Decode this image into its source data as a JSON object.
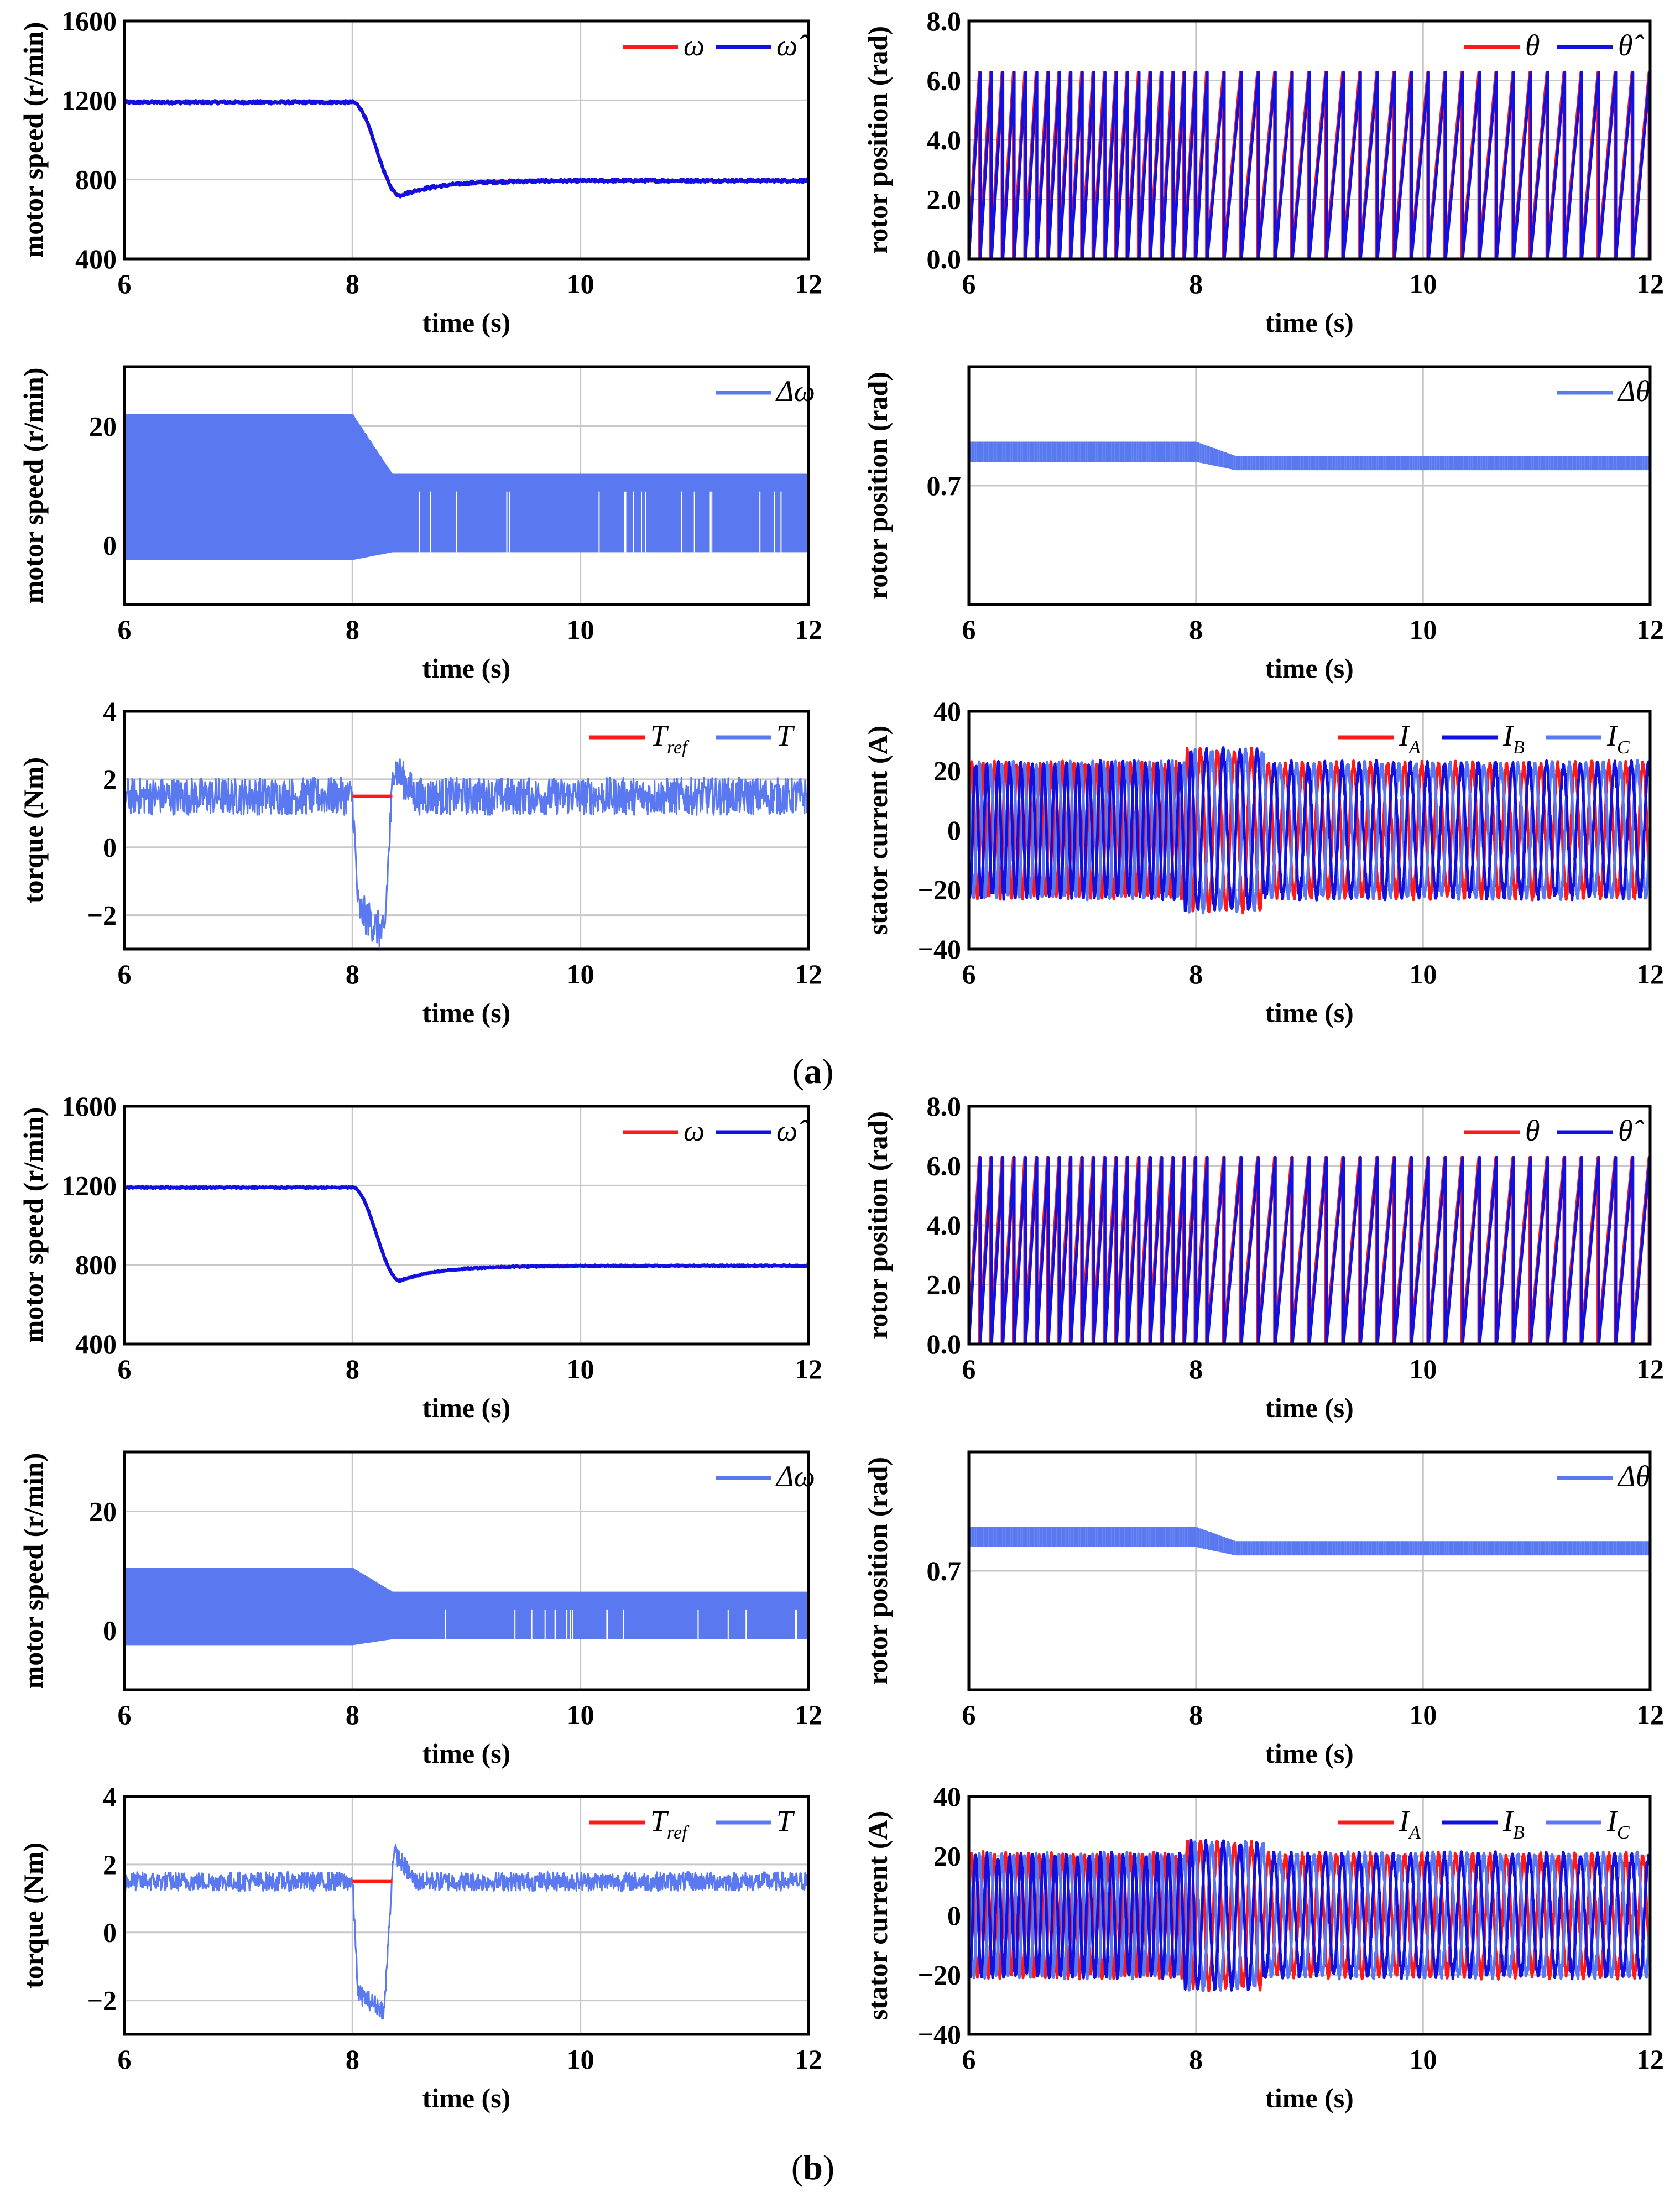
{
  "colors": {
    "red": "#ff1a1a",
    "blue": "#1010e0",
    "lightblue": "#5a78f0"
  },
  "captions": {
    "a_paren_open": "(",
    "a_letter": "a",
    "a_paren_close": ")",
    "b_paren_open": "(",
    "b_letter": "b",
    "b_paren_close": ")"
  },
  "chart_data": [
    {
      "id": "a-speed",
      "type": "line",
      "xlabel": "time (s)",
      "ylabel": "motor speed (r/min)",
      "xlim": [
        6,
        12
      ],
      "ylim": [
        400,
        1600
      ],
      "xticks": [
        "6",
        "8",
        "10",
        "12"
      ],
      "yticks": [
        "400",
        "800",
        "1200",
        "1600"
      ],
      "legend": [
        {
          "label": "ω",
          "color": "red"
        },
        {
          "label": "ω̂",
          "color": "blue"
        }
      ],
      "series": [
        {
          "name": "ω̂",
          "shape": "speed_step",
          "initial": 1190,
          "final": 795,
          "dip": 720,
          "t_step": 8.0,
          "noise": 8
        }
      ]
    },
    {
      "id": "a-pos",
      "type": "line",
      "xlabel": "time (s)",
      "ylabel": "rotor position (rad)",
      "xlim": [
        6,
        12
      ],
      "ylim": [
        0,
        8
      ],
      "xticks": [
        "6",
        "8",
        "10",
        "12"
      ],
      "yticks": [
        "0.0",
        "2.0",
        "4.0",
        "6.0",
        "8.0"
      ],
      "legend": [
        {
          "label": "θ",
          "color": "red"
        },
        {
          "label": "θ̂",
          "color": "blue"
        }
      ],
      "series": [
        {
          "name": "θ",
          "shape": "sawtooth",
          "max": 6.28,
          "freq_before": 10.0,
          "freq_after": 6.67,
          "t_step": 8.0
        }
      ]
    },
    {
      "id": "a-dspeed",
      "type": "area",
      "xlabel": "time (s)",
      "ylabel": "motor speed (r/min)",
      "xlim": [
        6,
        12
      ],
      "ylim": [
        -10,
        30
      ],
      "xticks": [
        "6",
        "8",
        "10",
        "12"
      ],
      "yticks": [
        "0",
        "20"
      ],
      "legend": [
        {
          "label": "Δω",
          "color": "lightblue"
        }
      ],
      "series": [
        {
          "name": "Δω",
          "shape": "band",
          "upper_before": 22,
          "lower_before": -2.5,
          "upper_after": 12,
          "lower_after": -1.2,
          "t_step": 8.0
        }
      ]
    },
    {
      "id": "a-dpos",
      "type": "area",
      "xlabel": "time (s)",
      "ylabel": "rotor position (rad)",
      "xlim": [
        6,
        12
      ],
      "ylim": [
        0.6,
        0.8
      ],
      "xticks": [
        "6",
        "8",
        "10",
        "12"
      ],
      "yticks": [
        "0.7"
      ],
      "legend": [
        {
          "label": "Δθ",
          "color": "lightblue"
        }
      ],
      "series": [
        {
          "name": "Δθ",
          "shape": "thin_band",
          "upper_before": 0.737,
          "lower_before": 0.72,
          "upper_after": 0.725,
          "lower_after": 0.713,
          "t_step": 8.0
        }
      ]
    },
    {
      "id": "a-torque",
      "type": "line",
      "xlabel": "time (s)",
      "ylabel": "torque (Nm)",
      "xlim": [
        6,
        12
      ],
      "ylim": [
        -3,
        4
      ],
      "xticks": [
        "6",
        "8",
        "10",
        "12"
      ],
      "yticks": [
        "−2",
        "0",
        "2",
        "4"
      ],
      "legend": [
        {
          "label": "T",
          "sub": "ref",
          "color": "red"
        },
        {
          "label": "T",
          "color": "lightblue"
        }
      ],
      "series": [
        {
          "name": "T",
          "shape": "torque",
          "mean": 1.5,
          "noise": 0.55,
          "min": -2.6,
          "t_step": 8.0
        },
        {
          "name": "Tref",
          "shape": "const",
          "value": 1.5,
          "from": 8.0,
          "to": 8.35
        }
      ]
    },
    {
      "id": "a-current",
      "type": "line",
      "xlabel": "time (s)",
      "ylabel": "stator current (A)",
      "xlim": [
        6,
        12
      ],
      "ylim": [
        -40,
        40
      ],
      "xticks": [
        "6",
        "8",
        "10",
        "12"
      ],
      "yticks": [
        "−40",
        "−20",
        "0",
        "20",
        "40"
      ],
      "legend": [
        {
          "label": "I",
          "sub": "A",
          "color": "red"
        },
        {
          "label": "I",
          "sub": "B",
          "color": "blue"
        },
        {
          "label": "I",
          "sub": "C",
          "color": "lightblue"
        }
      ],
      "series": [
        {
          "name": "IA/IB/IC",
          "shape": "three_phase",
          "amplitude": 22,
          "freq_before": 10.0,
          "freq_after": 6.67,
          "t_step": 8.0
        }
      ]
    },
    {
      "id": "b-speed",
      "type": "line",
      "xlabel": "time (s)",
      "ylabel": "motor speed (r/min)",
      "xlim": [
        6,
        12
      ],
      "ylim": [
        400,
        1600
      ],
      "xticks": [
        "6",
        "8",
        "10",
        "12"
      ],
      "yticks": [
        "400",
        "800",
        "1200",
        "1600"
      ],
      "legend": [
        {
          "label": "ω",
          "color": "red"
        },
        {
          "label": "ω̂",
          "color": "blue"
        }
      ],
      "series": [
        {
          "name": "ω̂",
          "shape": "speed_step",
          "initial": 1190,
          "final": 795,
          "dip": 720,
          "t_step": 8.0,
          "noise": 4
        }
      ]
    },
    {
      "id": "b-pos",
      "type": "line",
      "xlabel": "time (s)",
      "ylabel": "rotor position (rad)",
      "xlim": [
        6,
        12
      ],
      "ylim": [
        0,
        8
      ],
      "xticks": [
        "6",
        "8",
        "10",
        "12"
      ],
      "yticks": [
        "0.0",
        "2.0",
        "4.0",
        "6.0",
        "8.0"
      ],
      "legend": [
        {
          "label": "θ",
          "color": "red"
        },
        {
          "label": "θ̂",
          "color": "blue"
        }
      ],
      "series": [
        {
          "name": "θ",
          "shape": "sawtooth",
          "max": 6.28,
          "freq_before": 10.0,
          "freq_after": 6.67,
          "t_step": 8.0
        }
      ]
    },
    {
      "id": "b-dspeed",
      "type": "area",
      "xlabel": "time (s)",
      "ylabel": "motor speed (r/min)",
      "xlim": [
        6,
        12
      ],
      "ylim": [
        -10,
        30
      ],
      "xticks": [
        "6",
        "8",
        "10",
        "12"
      ],
      "yticks": [
        "0",
        "20"
      ],
      "legend": [
        {
          "label": "Δω",
          "color": "lightblue"
        }
      ],
      "series": [
        {
          "name": "Δω",
          "shape": "band",
          "upper_before": 10.5,
          "lower_before": -2.5,
          "upper_after": 6.5,
          "lower_after": -1.5,
          "t_step": 8.0
        }
      ]
    },
    {
      "id": "b-dpos",
      "type": "area",
      "xlabel": "time (s)",
      "ylabel": "rotor position (rad)",
      "xlim": [
        6,
        12
      ],
      "ylim": [
        0.6,
        0.8
      ],
      "xticks": [
        "6",
        "8",
        "10",
        "12"
      ],
      "yticks": [
        "0.7"
      ],
      "legend": [
        {
          "label": "Δθ",
          "color": "lightblue"
        }
      ],
      "series": [
        {
          "name": "Δθ",
          "shape": "thin_band",
          "upper_before": 0.737,
          "lower_before": 0.72,
          "upper_after": 0.725,
          "lower_after": 0.713,
          "t_step": 8.0
        }
      ]
    },
    {
      "id": "b-torque",
      "type": "line",
      "xlabel": "time (s)",
      "ylabel": "torque (Nm)",
      "xlim": [
        6,
        12
      ],
      "ylim": [
        -3,
        4
      ],
      "xticks": [
        "6",
        "8",
        "10",
        "12"
      ],
      "yticks": [
        "−2",
        "0",
        "2",
        "4"
      ],
      "legend": [
        {
          "label": "T",
          "sub": "ref",
          "color": "red"
        },
        {
          "label": "T",
          "color": "lightblue"
        }
      ],
      "series": [
        {
          "name": "T",
          "shape": "torque",
          "mean": 1.5,
          "noise": 0.28,
          "min": -2.3,
          "t_step": 8.0
        },
        {
          "name": "Tref",
          "shape": "const",
          "value": 1.5,
          "from": 8.0,
          "to": 8.35
        }
      ]
    },
    {
      "id": "b-current",
      "type": "line",
      "xlabel": "time (s)",
      "ylabel": "stator current (A)",
      "xlim": [
        6,
        12
      ],
      "ylim": [
        -40,
        40
      ],
      "xticks": [
        "6",
        "8",
        "10",
        "12"
      ],
      "yticks": [
        "−40",
        "−20",
        "0",
        "20",
        "40"
      ],
      "legend": [
        {
          "label": "I",
          "sub": "A",
          "color": "red"
        },
        {
          "label": "I",
          "sub": "B",
          "color": "blue"
        },
        {
          "label": "I",
          "sub": "C",
          "color": "lightblue"
        }
      ],
      "series": [
        {
          "name": "IA/IB/IC",
          "shape": "three_phase",
          "amplitude": 20,
          "freq_before": 10.0,
          "freq_after": 6.67,
          "t_step": 8.0
        }
      ]
    }
  ]
}
